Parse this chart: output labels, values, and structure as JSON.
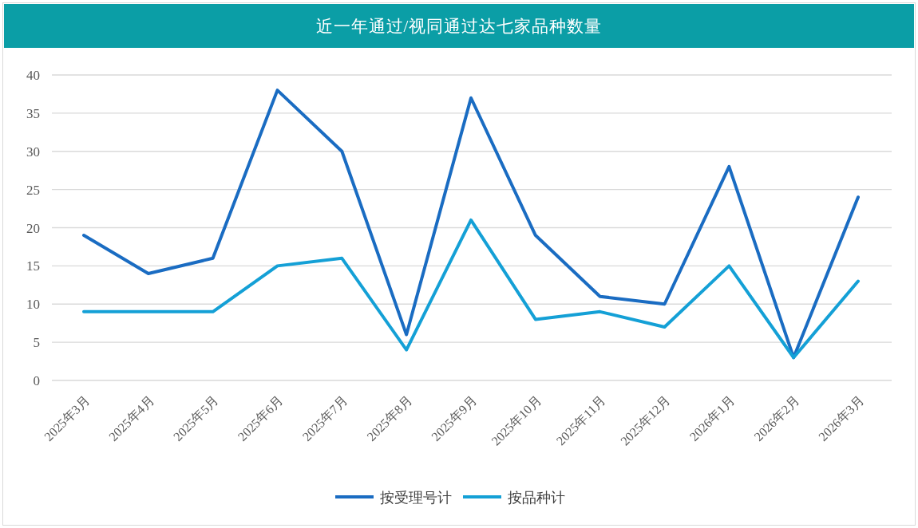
{
  "chart_data": {
    "type": "line",
    "title": "近一年通过/视同通过达七家品种数量",
    "categories": [
      "2025年3月",
      "2025年4月",
      "2025年5月",
      "2025年6月",
      "2025年7月",
      "2025年8月",
      "2025年9月",
      "2025年10月",
      "2025年11月",
      "2025年12月",
      "2026年1月",
      "2026年2月",
      "2026年3月"
    ],
    "series": [
      {
        "name": "按受理号计",
        "color": "#1a6cc2",
        "values": [
          19,
          14,
          16,
          38,
          30,
          6,
          37,
          19,
          11,
          10,
          28,
          3,
          24
        ]
      },
      {
        "name": "按品种计",
        "color": "#14a0d6",
        "values": [
          9,
          9,
          9,
          15,
          16,
          4,
          21,
          8,
          9,
          7,
          15,
          3,
          13
        ]
      }
    ],
    "ylim": [
      0,
      40
    ],
    "yticks": [
      0,
      5,
      10,
      15,
      20,
      25,
      30,
      35,
      40
    ],
    "grid": "y",
    "legend": "bottom",
    "marker": "none",
    "line_style": "solid"
  }
}
